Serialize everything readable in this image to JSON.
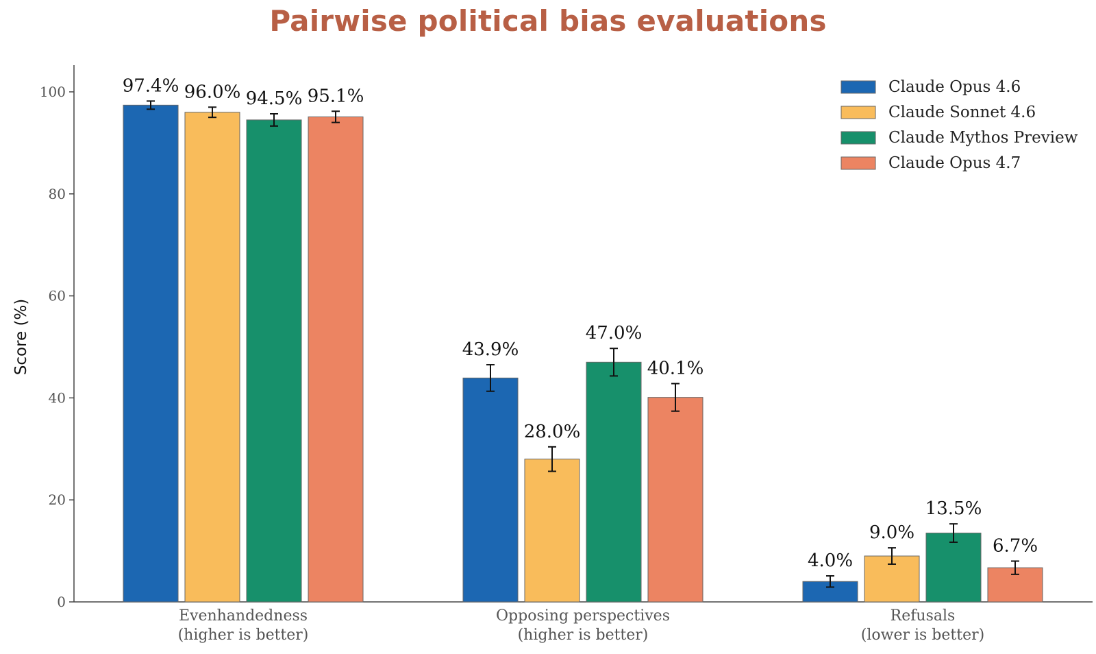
{
  "chart_data": {
    "type": "bar",
    "title": "Pairwise political bias evaluations",
    "ylabel": "Score (%)",
    "xlabel": "",
    "ylim": [
      0,
      105
    ],
    "yticks": [
      0,
      20,
      40,
      60,
      80,
      100
    ],
    "grid": false,
    "legend_position": "top-right",
    "categories": [
      {
        "line1": "Evenhandedness",
        "line2": "(higher is better)"
      },
      {
        "line1": "Opposing perspectives",
        "line2": "(higher is better)"
      },
      {
        "line1": "Refusals",
        "line2": "(lower is better)"
      }
    ],
    "series": [
      {
        "name": "Claude Opus 4.6",
        "color": "#1C67B2",
        "values": [
          97.4,
          43.9,
          4.0
        ],
        "errors": [
          0.8,
          2.6,
          1.1
        ],
        "labels": [
          "97.4%",
          "43.9%",
          "4.0%"
        ]
      },
      {
        "name": "Claude Sonnet 4.6",
        "color": "#F9BC5B",
        "values": [
          96.0,
          28.0,
          9.0
        ],
        "errors": [
          1.0,
          2.4,
          1.6
        ],
        "labels": [
          "96.0%",
          "28.0%",
          "9.0%"
        ]
      },
      {
        "name": "Claude Mythos Preview",
        "color": "#17906B",
        "values": [
          94.5,
          47.0,
          13.5
        ],
        "errors": [
          1.2,
          2.7,
          1.8
        ],
        "labels": [
          "94.5%",
          "47.0%",
          "13.5%"
        ]
      },
      {
        "name": "Claude Opus 4.7",
        "color": "#EC8462",
        "values": [
          95.1,
          40.1,
          6.7
        ],
        "errors": [
          1.1,
          2.7,
          1.3
        ],
        "labels": [
          "95.1%",
          "40.1%",
          "6.7%"
        ]
      }
    ]
  }
}
